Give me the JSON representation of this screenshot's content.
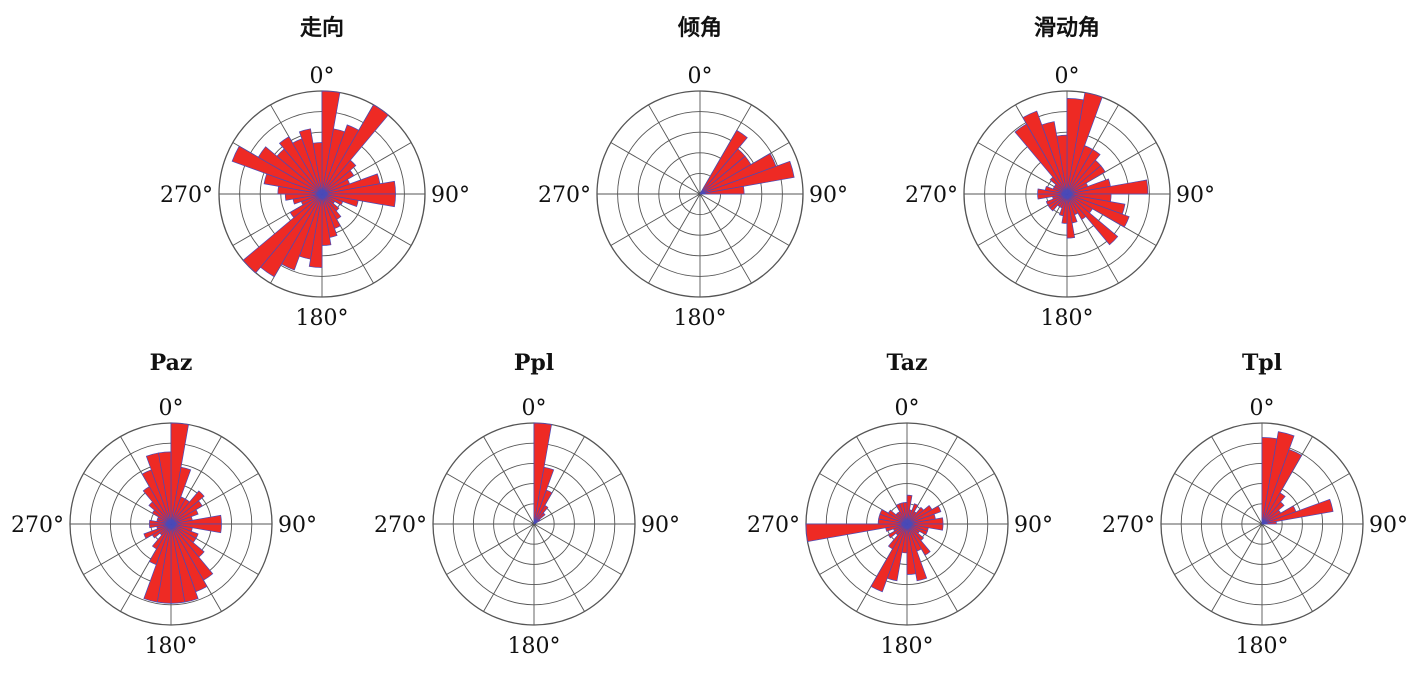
{
  "colors": {
    "petal_fill": "#ee2a24",
    "petal_stroke": "#4a4ab8",
    "grid": "#555555"
  },
  "chart_data": [
    {
      "type": "rose",
      "title": "走向",
      "angle_labels": [
        "0°",
        "90°",
        "180°",
        "270°"
      ],
      "bin_width_deg": 10,
      "rmax": 7,
      "bins": [
        {
          "center": 5,
          "value": 7
        },
        {
          "center": 15,
          "value": 4.5
        },
        {
          "center": 25,
          "value": 5
        },
        {
          "center": 35,
          "value": 7
        },
        {
          "center": 45,
          "value": 3
        },
        {
          "center": 55,
          "value": 2.5
        },
        {
          "center": 65,
          "value": 2
        },
        {
          "center": 75,
          "value": 4
        },
        {
          "center": 85,
          "value": 5
        },
        {
          "center": 95,
          "value": 5
        },
        {
          "center": 105,
          "value": 2.5
        },
        {
          "center": 115,
          "value": 1.5
        },
        {
          "center": 125,
          "value": 1
        },
        {
          "center": 135,
          "value": 1.5
        },
        {
          "center": 145,
          "value": 2
        },
        {
          "center": 155,
          "value": 2.5
        },
        {
          "center": 165,
          "value": 3
        },
        {
          "center": 175,
          "value": 3.5
        },
        {
          "center": 185,
          "value": 5
        },
        {
          "center": 195,
          "value": 4.5
        },
        {
          "center": 205,
          "value": 5.5
        },
        {
          "center": 215,
          "value": 6.5
        },
        {
          "center": 225,
          "value": 7
        },
        {
          "center": 235,
          "value": 2.5
        },
        {
          "center": 245,
          "value": 1.5
        },
        {
          "center": 255,
          "value": 2
        },
        {
          "center": 265,
          "value": 2.5
        },
        {
          "center": 275,
          "value": 3
        },
        {
          "center": 285,
          "value": 4
        },
        {
          "center": 295,
          "value": 6.5
        },
        {
          "center": 305,
          "value": 5
        },
        {
          "center": 315,
          "value": 4
        },
        {
          "center": 325,
          "value": 4.5
        },
        {
          "center": 335,
          "value": 4
        },
        {
          "center": 345,
          "value": 4.5
        },
        {
          "center": 355,
          "value": 3.5
        }
      ]
    },
    {
      "type": "rose",
      "title": "倾角",
      "angle_labels": [
        "0°",
        "90°",
        "180°",
        "270°"
      ],
      "bin_width_deg": 10,
      "rmax": 7,
      "bins": [
        {
          "center": 35,
          "value": 5
        },
        {
          "center": 45,
          "value": 4
        },
        {
          "center": 55,
          "value": 4
        },
        {
          "center": 65,
          "value": 5.5
        },
        {
          "center": 75,
          "value": 6.5
        },
        {
          "center": 85,
          "value": 3
        }
      ]
    },
    {
      "type": "rose",
      "title": "滑动角",
      "angle_labels": [
        "0°",
        "90°",
        "180°",
        "270°"
      ],
      "bin_width_deg": 10,
      "rmax": 7,
      "bins": [
        {
          "center": 5,
          "value": 6.5
        },
        {
          "center": 15,
          "value": 7
        },
        {
          "center": 25,
          "value": 3.5
        },
        {
          "center": 35,
          "value": 3.5
        },
        {
          "center": 45,
          "value": 3
        },
        {
          "center": 55,
          "value": 3
        },
        {
          "center": 65,
          "value": 1.5
        },
        {
          "center": 75,
          "value": 3
        },
        {
          "center": 85,
          "value": 5.5
        },
        {
          "center": 95,
          "value": 3
        },
        {
          "center": 105,
          "value": 4
        },
        {
          "center": 115,
          "value": 4.5
        },
        {
          "center": 125,
          "value": 2
        },
        {
          "center": 135,
          "value": 4.5
        },
        {
          "center": 145,
          "value": 2
        },
        {
          "center": 155,
          "value": 1.5
        },
        {
          "center": 165,
          "value": 2
        },
        {
          "center": 175,
          "value": 3
        },
        {
          "center": 185,
          "value": 2
        },
        {
          "center": 195,
          "value": 1.5
        },
        {
          "center": 205,
          "value": 1
        },
        {
          "center": 215,
          "value": 1
        },
        {
          "center": 225,
          "value": 1.5
        },
        {
          "center": 235,
          "value": 1.5
        },
        {
          "center": 245,
          "value": 1.5
        },
        {
          "center": 255,
          "value": 1
        },
        {
          "center": 265,
          "value": 2
        },
        {
          "center": 275,
          "value": 2
        },
        {
          "center": 285,
          "value": 1.5
        },
        {
          "center": 295,
          "value": 1
        },
        {
          "center": 305,
          "value": 1
        },
        {
          "center": 315,
          "value": 1.5
        },
        {
          "center": 325,
          "value": 5.5
        },
        {
          "center": 335,
          "value": 6
        },
        {
          "center": 345,
          "value": 5
        },
        {
          "center": 355,
          "value": 4
        }
      ]
    },
    {
      "type": "rose",
      "title": "Paz",
      "angle_labels": [
        "0°",
        "90°",
        "180°",
        "270°"
      ],
      "bin_width_deg": 10,
      "rmax": 7,
      "bins": [
        {
          "center": 5,
          "value": 7
        },
        {
          "center": 15,
          "value": 4
        },
        {
          "center": 25,
          "value": 2
        },
        {
          "center": 35,
          "value": 2
        },
        {
          "center": 45,
          "value": 3
        },
        {
          "center": 55,
          "value": 2.5
        },
        {
          "center": 65,
          "value": 2
        },
        {
          "center": 75,
          "value": 1.5
        },
        {
          "center": 85,
          "value": 3.5
        },
        {
          "center": 95,
          "value": 3.5
        },
        {
          "center": 105,
          "value": 1.5
        },
        {
          "center": 115,
          "value": 2
        },
        {
          "center": 125,
          "value": 2
        },
        {
          "center": 135,
          "value": 3
        },
        {
          "center": 145,
          "value": 4.5
        },
        {
          "center": 155,
          "value": 5
        },
        {
          "center": 165,
          "value": 5.5
        },
        {
          "center": 175,
          "value": 5.5
        },
        {
          "center": 185,
          "value": 5.5
        },
        {
          "center": 195,
          "value": 5.5
        },
        {
          "center": 205,
          "value": 3
        },
        {
          "center": 215,
          "value": 2
        },
        {
          "center": 225,
          "value": 1
        },
        {
          "center": 235,
          "value": 1.5
        },
        {
          "center": 245,
          "value": 2
        },
        {
          "center": 255,
          "value": 1
        },
        {
          "center": 265,
          "value": 1.5
        },
        {
          "center": 275,
          "value": 1.5
        },
        {
          "center": 285,
          "value": 1
        },
        {
          "center": 295,
          "value": 1
        },
        {
          "center": 305,
          "value": 1.5
        },
        {
          "center": 315,
          "value": 2
        },
        {
          "center": 325,
          "value": 3
        },
        {
          "center": 335,
          "value": 4
        },
        {
          "center": 345,
          "value": 5
        },
        {
          "center": 355,
          "value": 5
        }
      ]
    },
    {
      "type": "rose",
      "title": "Ppl",
      "angle_labels": [
        "0°",
        "90°",
        "180°",
        "270°"
      ],
      "bin_width_deg": 10,
      "rmax": 7,
      "bins": [
        {
          "center": 5,
          "value": 7
        },
        {
          "center": 15,
          "value": 4
        },
        {
          "center": 25,
          "value": 2.5
        },
        {
          "center": 35,
          "value": 1.5
        },
        {
          "center": 45,
          "value": 1
        },
        {
          "center": 55,
          "value": 0.5
        }
      ]
    },
    {
      "type": "rose",
      "title": "Taz",
      "angle_labels": [
        "0°",
        "90°",
        "180°",
        "270°"
      ],
      "bin_width_deg": 10,
      "rmax": 7,
      "bins": [
        {
          "center": 5,
          "value": 2
        },
        {
          "center": 15,
          "value": 1
        },
        {
          "center": 25,
          "value": 1.5
        },
        {
          "center": 35,
          "value": 1
        },
        {
          "center": 45,
          "value": 1.5
        },
        {
          "center": 55,
          "value": 2
        },
        {
          "center": 65,
          "value": 2.5
        },
        {
          "center": 75,
          "value": 2
        },
        {
          "center": 85,
          "value": 2.5
        },
        {
          "center": 95,
          "value": 2.5
        },
        {
          "center": 105,
          "value": 1.5
        },
        {
          "center": 115,
          "value": 1.5
        },
        {
          "center": 125,
          "value": 1
        },
        {
          "center": 135,
          "value": 1.5
        },
        {
          "center": 145,
          "value": 2.5
        },
        {
          "center": 155,
          "value": 2
        },
        {
          "center": 165,
          "value": 4
        },
        {
          "center": 175,
          "value": 3.5
        },
        {
          "center": 185,
          "value": 2
        },
        {
          "center": 195,
          "value": 4
        },
        {
          "center": 205,
          "value": 5
        },
        {
          "center": 215,
          "value": 2
        },
        {
          "center": 225,
          "value": 1
        },
        {
          "center": 235,
          "value": 1.5
        },
        {
          "center": 245,
          "value": 1
        },
        {
          "center": 255,
          "value": 1.5
        },
        {
          "center": 265,
          "value": 7
        },
        {
          "center": 275,
          "value": 2
        },
        {
          "center": 285,
          "value": 2
        },
        {
          "center": 295,
          "value": 2
        },
        {
          "center": 305,
          "value": 1.5
        },
        {
          "center": 315,
          "value": 1
        },
        {
          "center": 325,
          "value": 1
        },
        {
          "center": 335,
          "value": 1.5
        },
        {
          "center": 345,
          "value": 1.5
        },
        {
          "center": 355,
          "value": 1.5
        }
      ]
    },
    {
      "type": "rose",
      "title": "Tpl",
      "angle_labels": [
        "0°",
        "90°",
        "180°",
        "270°"
      ],
      "bin_width_deg": 10,
      "rmax": 7,
      "bins": [
        {
          "center": 5,
          "value": 6
        },
        {
          "center": 15,
          "value": 6.5
        },
        {
          "center": 25,
          "value": 5.5
        },
        {
          "center": 35,
          "value": 2.5
        },
        {
          "center": 45,
          "value": 2
        },
        {
          "center": 55,
          "value": 1.5
        },
        {
          "center": 65,
          "value": 2.5
        },
        {
          "center": 75,
          "value": 5
        },
        {
          "center": 85,
          "value": 1
        }
      ]
    }
  ]
}
